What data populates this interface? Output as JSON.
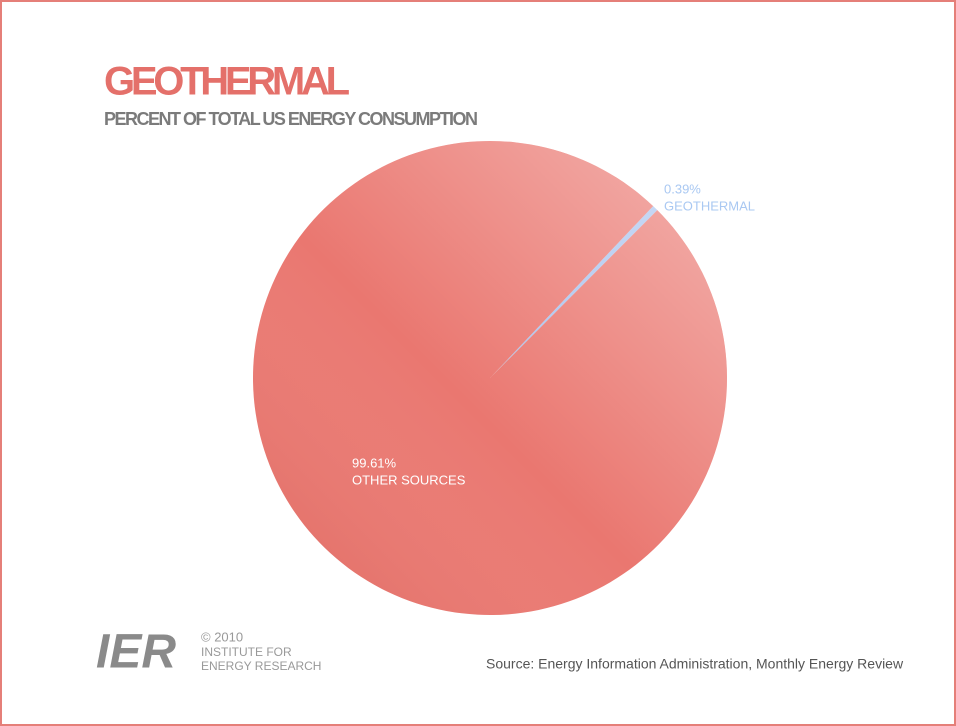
{
  "chart_data": {
    "type": "pie",
    "title": "GEOTHERMAL",
    "subtitle": "PERCENT OF TOTAL US ENERGY CONSUMPTION",
    "categories": [
      "GEOTHERMAL",
      "OTHER SOURCES"
    ],
    "values": [
      0.39,
      99.61
    ],
    "value_labels": [
      "0.39%",
      "99.61%"
    ],
    "colors": [
      "#a9c3ee",
      "#ea7770"
    ],
    "label_colors": [
      "#a9c8f2",
      "#ffffff"
    ],
    "source": "Source: Energy Information Administration, Monthly Energy Review",
    "logo": {
      "mark": "IER",
      "copyright": "© 2010",
      "line1": "INSTITUTE FOR",
      "line2": "ENERGY RESEARCH"
    }
  }
}
